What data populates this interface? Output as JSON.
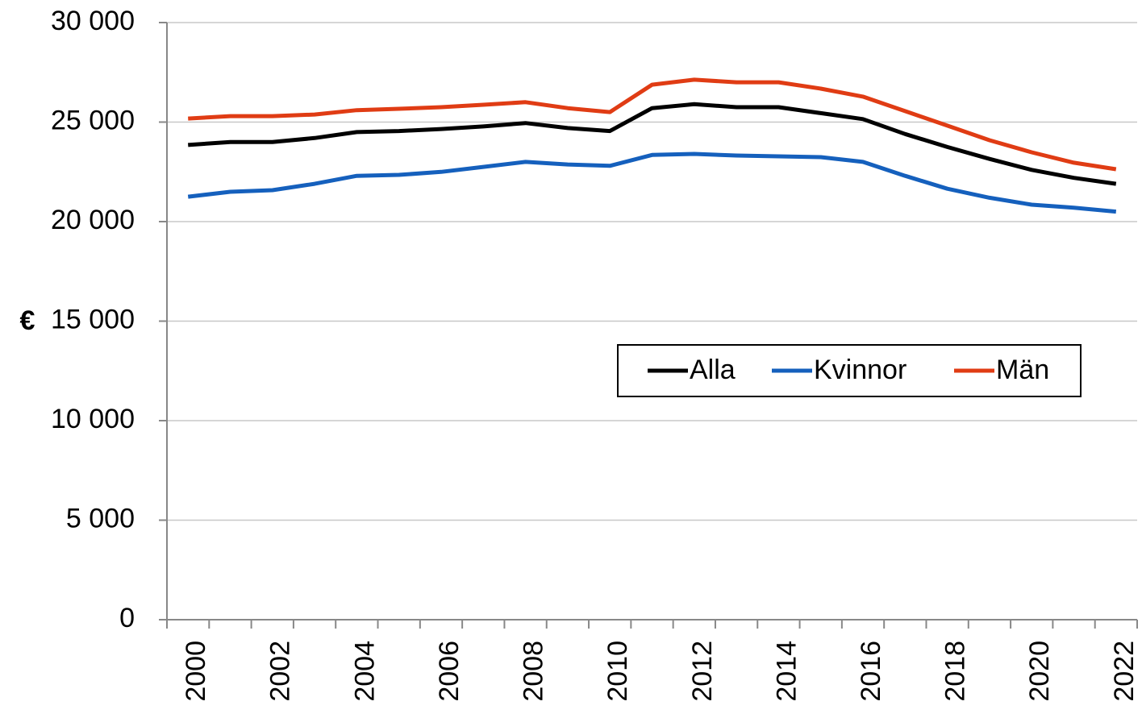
{
  "chart_data": {
    "type": "line",
    "y_label": "€",
    "categories": [
      "2000",
      null,
      "2002",
      null,
      "2004",
      null,
      "2006",
      null,
      "2008",
      null,
      "2010",
      null,
      "2012",
      null,
      "2014",
      null,
      "2016",
      null,
      "2018",
      null,
      "2020",
      null,
      "2022"
    ],
    "series": [
      {
        "name": "Alla",
        "color": "#000000",
        "values": [
          23850,
          24000,
          24000,
          24200,
          24500,
          24550,
          24650,
          24780,
          24950,
          24700,
          24550,
          25700,
          25900,
          25750,
          25750,
          25450,
          25150,
          24400,
          23750,
          23150,
          22600,
          22200,
          21900
        ]
      },
      {
        "name": "Kvinnor",
        "color": "#1560bd",
        "values": [
          21250,
          21500,
          21580,
          21900,
          22300,
          22350,
          22500,
          22750,
          23000,
          22870,
          22800,
          23350,
          23400,
          23320,
          23280,
          23240,
          23000,
          22300,
          21650,
          21200,
          20850,
          20700,
          20500
        ]
      },
      {
        "name": "Män",
        "color": "#e03c14",
        "values": [
          25180,
          25300,
          25300,
          25380,
          25600,
          25670,
          25750,
          25870,
          26000,
          25700,
          25500,
          26880,
          27130,
          27000,
          27000,
          26680,
          26280,
          25550,
          24820,
          24090,
          23480,
          22960,
          22630
        ]
      }
    ],
    "ylim": [
      0,
      30000
    ],
    "yticks": [
      0,
      {
        "value": 5000,
        "label": "5 000"
      },
      {
        "value": 10000,
        "label": "10 000"
      },
      {
        "value": 15000,
        "label": "15 000"
      },
      {
        "value": 20000,
        "label": "20 000"
      },
      {
        "value": 25000,
        "label": "25 000"
      },
      {
        "value": 30000,
        "label": "30 000"
      }
    ],
    "grid": true,
    "legend": "right"
  }
}
